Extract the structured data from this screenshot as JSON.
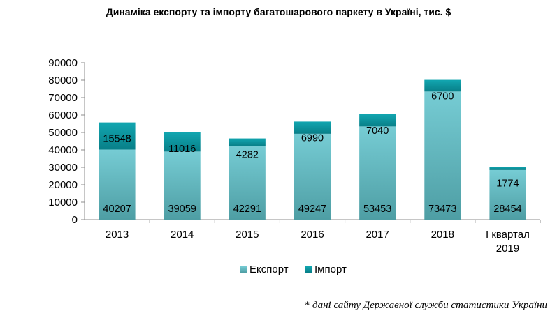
{
  "chart_data": {
    "type": "bar",
    "stacked": true,
    "title": "Динаміка експорту та імпорту багатошарового паркету в Україні, тис. $",
    "categories": [
      "2013",
      "2014",
      "2015",
      "2016",
      "2017",
      "2018",
      "I квартал 2019"
    ],
    "series": [
      {
        "name": "Експорт",
        "values": [
          40207,
          39059,
          42291,
          49247,
          53453,
          73473,
          28454
        ],
        "color": "#5fbcc6"
      },
      {
        "name": "Імпорт",
        "values": [
          15548,
          11016,
          4282,
          6990,
          7040,
          6700,
          1774
        ],
        "color": "#0a8f9a"
      }
    ],
    "ylim": [
      0,
      90000
    ],
    "yticks": [
      "0",
      "10000",
      "20000",
      "30000",
      "40000",
      "50000",
      "60000",
      "70000",
      "80000",
      "90000"
    ],
    "grid": false,
    "legend": "bottom",
    "data_labels": true
  },
  "footnote": {
    "star": "*",
    "text": "дані сайту Державної служби статистики України"
  }
}
